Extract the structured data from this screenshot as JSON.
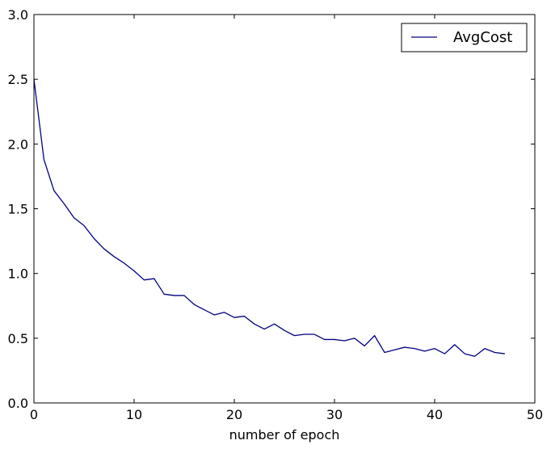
{
  "chart_data": {
    "type": "line",
    "title": "",
    "xlabel": "number of epoch",
    "ylabel": "",
    "xlim": [
      0,
      50
    ],
    "ylim": [
      0,
      3.0
    ],
    "xticks": [
      0,
      10,
      20,
      30,
      40,
      50
    ],
    "xtick_labels": [
      "0",
      "10",
      "20",
      "30",
      "40",
      "50"
    ],
    "yticks": [
      0,
      0.5,
      1.0,
      1.5,
      2.0,
      2.5,
      3.0
    ],
    "ytick_labels": [
      "0.0",
      "0.5",
      "1.0",
      "1.5",
      "2.0",
      "2.5",
      "3.0"
    ],
    "grid": false,
    "legend_position": "top-right",
    "series": [
      {
        "name": "AvgCost",
        "color": "#000080",
        "x": [
          0,
          1,
          2,
          3,
          4,
          5,
          6,
          7,
          8,
          9,
          10,
          11,
          12,
          13,
          14,
          15,
          16,
          17,
          18,
          19,
          20,
          21,
          22,
          23,
          24,
          25,
          26,
          27,
          28,
          29,
          30,
          31,
          32,
          33,
          34,
          35,
          36,
          37,
          38,
          39,
          40,
          41,
          42,
          43,
          44,
          45,
          46,
          47
        ],
        "y": [
          2.5,
          1.88,
          1.64,
          1.54,
          1.43,
          1.37,
          1.27,
          1.19,
          1.13,
          1.08,
          1.02,
          0.95,
          0.96,
          0.84,
          0.83,
          0.83,
          0.76,
          0.72,
          0.68,
          0.7,
          0.66,
          0.67,
          0.61,
          0.57,
          0.61,
          0.56,
          0.52,
          0.53,
          0.53,
          0.49,
          0.49,
          0.48,
          0.5,
          0.44,
          0.52,
          0.39,
          0.41,
          0.43,
          0.42,
          0.4,
          0.42,
          0.38,
          0.45,
          0.38,
          0.36,
          0.42,
          0.39,
          0.38
        ]
      }
    ]
  }
}
